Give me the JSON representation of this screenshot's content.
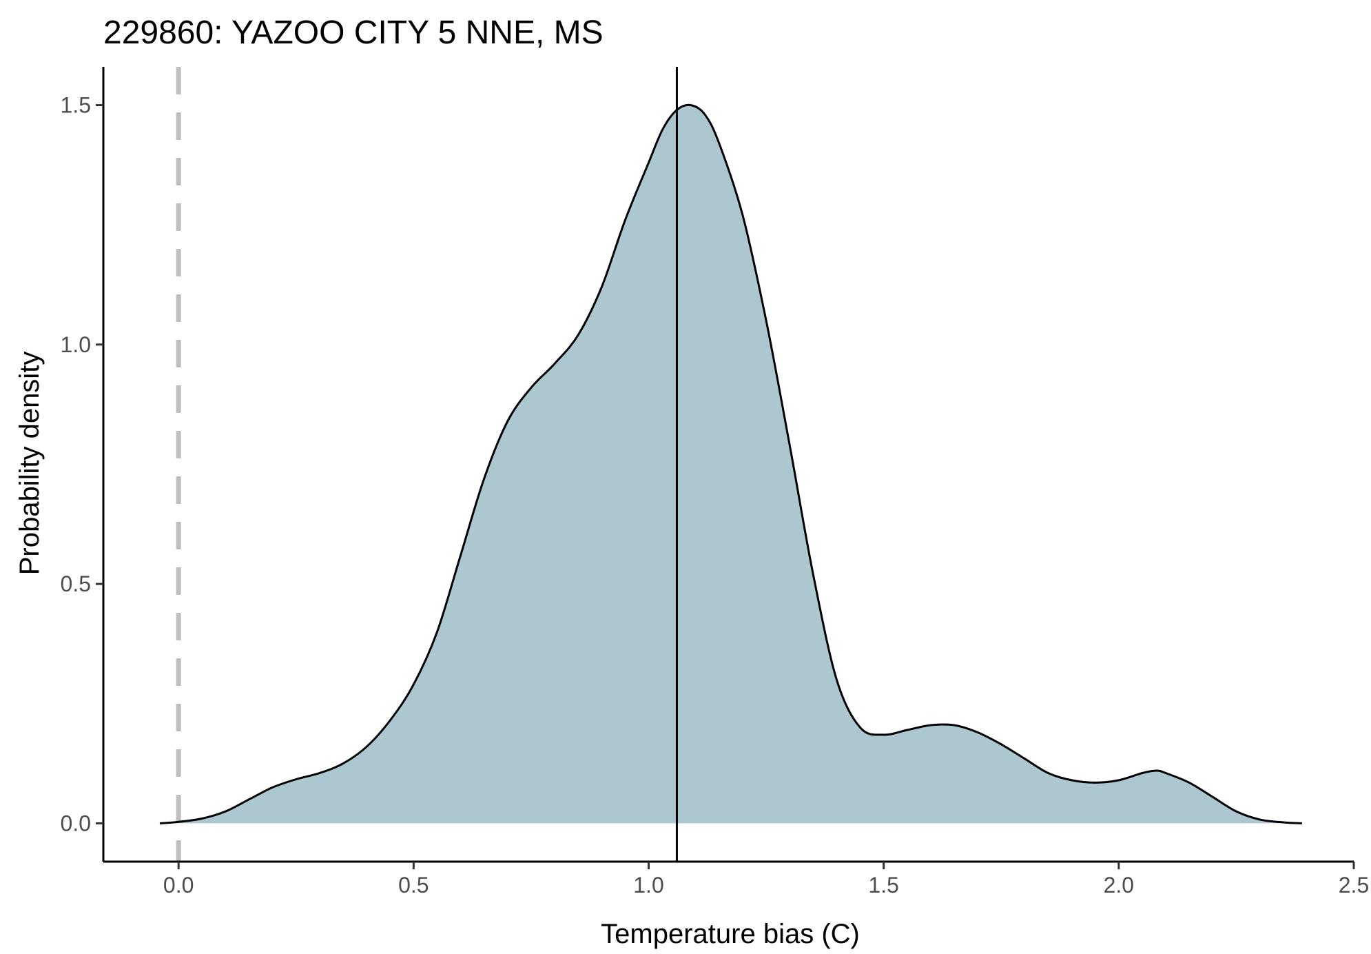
{
  "chart_data": {
    "type": "area",
    "title": "229860: YAZOO CITY 5 NNE, MS",
    "xlabel": "Temperature bias (C)",
    "ylabel": "Probability density",
    "xlim": [
      -0.16,
      2.5
    ],
    "ylim": [
      -0.08,
      1.58
    ],
    "x_ticks": [
      0.0,
      0.5,
      1.0,
      1.5,
      2.0,
      2.5
    ],
    "x_tick_labels": [
      "0.0",
      "0.5",
      "1.0",
      "1.5",
      "2.0",
      "2.5"
    ],
    "y_ticks": [
      0.0,
      0.5,
      1.0,
      1.5
    ],
    "y_tick_labels": [
      "0.0",
      "0.5",
      "1.0",
      "1.5"
    ],
    "grid": false,
    "legend": "none",
    "series": [
      {
        "x": [
          -0.04,
          0.0,
          0.05,
          0.1,
          0.15,
          0.2,
          0.25,
          0.3,
          0.35,
          0.4,
          0.45,
          0.5,
          0.55,
          0.6,
          0.65,
          0.7,
          0.75,
          0.8,
          0.85,
          0.9,
          0.95,
          1.0,
          1.03,
          1.06,
          1.09,
          1.12,
          1.15,
          1.2,
          1.25,
          1.3,
          1.35,
          1.4,
          1.45,
          1.5,
          1.55,
          1.6,
          1.65,
          1.7,
          1.75,
          1.8,
          1.85,
          1.9,
          1.95,
          2.0,
          2.05,
          2.08,
          2.1,
          2.15,
          2.2,
          2.25,
          2.3,
          2.35,
          2.39
        ],
        "y": [
          0.0,
          0.003,
          0.01,
          0.025,
          0.05,
          0.075,
          0.092,
          0.105,
          0.125,
          0.16,
          0.215,
          0.29,
          0.4,
          0.56,
          0.72,
          0.84,
          0.91,
          0.96,
          1.02,
          1.12,
          1.26,
          1.38,
          1.45,
          1.49,
          1.5,
          1.48,
          1.42,
          1.27,
          1.05,
          0.79,
          0.52,
          0.3,
          0.2,
          0.185,
          0.195,
          0.205,
          0.205,
          0.19,
          0.165,
          0.135,
          0.105,
          0.09,
          0.085,
          0.09,
          0.105,
          0.11,
          0.105,
          0.085,
          0.055,
          0.025,
          0.008,
          0.002,
          0.0
        ],
        "fill": "#adc7d1",
        "line_color": "#000000"
      }
    ],
    "reference_lines": [
      {
        "x": 0.0,
        "style": "dashed",
        "color": "#bebebe"
      },
      {
        "x": 1.06,
        "style": "solid",
        "color": "#000000"
      }
    ]
  }
}
